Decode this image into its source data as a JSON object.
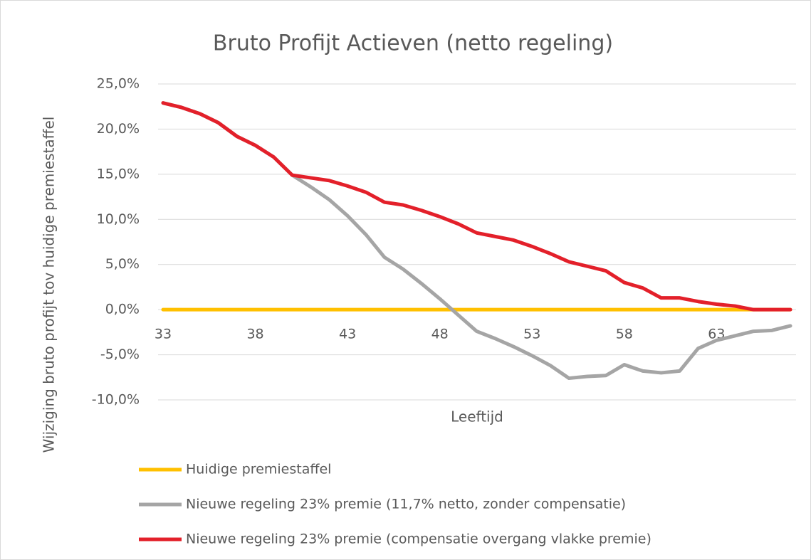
{
  "chart_data": {
    "type": "line",
    "title": "Bruto Profijt Actieven (netto regeling)",
    "x_label": "Leeftijd",
    "y_label": "Wijziging bruto profijt tov huidige premiestaffel",
    "categories": [
      33,
      null,
      null,
      null,
      null,
      38,
      null,
      null,
      null,
      null,
      43,
      null,
      null,
      null,
      null,
      48,
      null,
      null,
      null,
      null,
      53,
      null,
      null,
      null,
      null,
      58,
      null,
      null,
      null,
      null,
      63,
      null,
      null,
      null,
      null
    ],
    "series": [
      {
        "name": "Huidige premiestaffel",
        "color": "#ffc000",
        "values": [
          0,
          0,
          0,
          0,
          0,
          0,
          0,
          0,
          0,
          0,
          0,
          0,
          0,
          0,
          0,
          0,
          0,
          0,
          0,
          0,
          0,
          0,
          0,
          0,
          0,
          0,
          0,
          0,
          0,
          0,
          0,
          0,
          0,
          0,
          0
        ]
      },
      {
        "name": "Nieuwe regeling 23% premie (11,7% netto, zonder compensatie)",
        "color": "#a5a5a5",
        "values": [
          22.9,
          22.4,
          21.7,
          20.7,
          19.2,
          18.2,
          16.9,
          14.9,
          13.6,
          12.2,
          10.4,
          8.3,
          5.8,
          4.5,
          2.9,
          1.2,
          -0.6,
          -2.4,
          -3.2,
          -4.1,
          -5.1,
          -6.2,
          -7.6,
          -7.4,
          -7.3,
          -6.1,
          -6.8,
          -7.0,
          -6.8,
          -4.3,
          -3.4,
          -2.9,
          -2.4,
          -2.3,
          -1.8
        ]
      },
      {
        "name": "Nieuwe regeling 23% premie (compensatie overgang vlakke premie)",
        "color": "#e3202a",
        "values": [
          22.9,
          22.4,
          21.7,
          20.7,
          19.2,
          18.2,
          16.9,
          14.9,
          14.6,
          14.3,
          13.7,
          13.0,
          11.9,
          11.6,
          11.0,
          10.3,
          9.5,
          8.5,
          8.1,
          7.7,
          7.0,
          6.2,
          5.3,
          4.8,
          4.3,
          3.0,
          2.4,
          1.3,
          1.3,
          0.9,
          0.6,
          0.4,
          0,
          0,
          0
        ]
      }
    ],
    "ylim": [
      -10,
      25
    ],
    "yticks": [
      {
        "value": -10,
        "label": "-10,0%"
      },
      {
        "value": -5,
        "label": "-5,0%"
      },
      {
        "value": 0,
        "label": "0,0%"
      },
      {
        "value": 5,
        "label": "5,0%"
      },
      {
        "value": 10,
        "label": "10,0%"
      },
      {
        "value": 15,
        "label": "15,0%"
      },
      {
        "value": 20,
        "label": "20,0%"
      },
      {
        "value": 25,
        "label": "25,0%"
      }
    ],
    "grid": true,
    "legend": "bottom"
  }
}
